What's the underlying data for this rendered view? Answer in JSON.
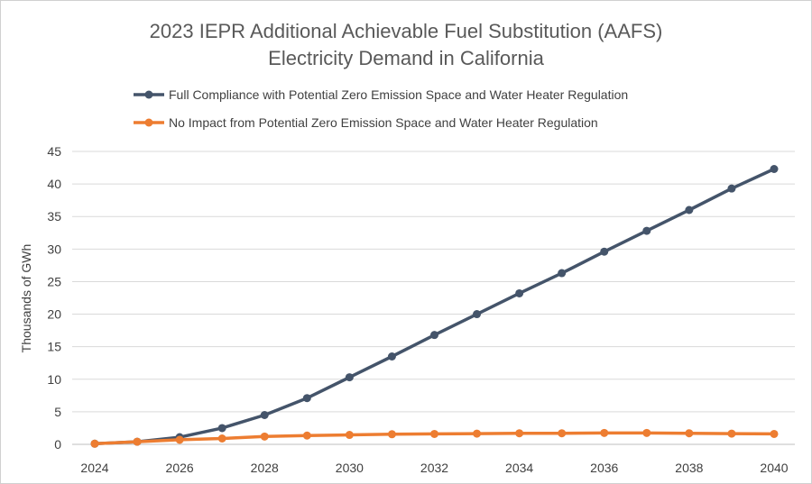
{
  "chart_data": {
    "type": "line",
    "title_lines": [
      "2023 IEPR Additional Achievable Fuel Substitution (AAFS)",
      "Electricity Demand in California"
    ],
    "xlabel": "",
    "ylabel": "Thousands of GWh",
    "ylim": [
      0,
      45
    ],
    "yticks": [
      "0",
      "5",
      "10",
      "15",
      "20",
      "25",
      "30",
      "35",
      "40",
      "45"
    ],
    "x": [
      2024,
      2025,
      2026,
      2027,
      2028,
      2029,
      2030,
      2031,
      2032,
      2033,
      2034,
      2035,
      2036,
      2037,
      2038,
      2039,
      2040
    ],
    "xticks": [
      "2024",
      "2026",
      "2028",
      "2030",
      "2032",
      "2034",
      "2036",
      "2038",
      "2040"
    ],
    "grid": "horizontal",
    "legend_position": "top",
    "series": [
      {
        "name": "Full Compliance with Potential Zero Emission Space and Water Heater Regulation",
        "color": "#44546a",
        "values": [
          0.1,
          0.4,
          1.1,
          2.5,
          4.5,
          7.1,
          10.3,
          13.5,
          16.8,
          20.0,
          23.2,
          26.3,
          29.6,
          32.8,
          36.0,
          39.3,
          42.3
        ]
      },
      {
        "name": "No Impact from Potential Zero Emission Space and Water Heater Regulation",
        "color": "#ed7d31",
        "values": [
          0.1,
          0.4,
          0.7,
          0.9,
          1.2,
          1.35,
          1.45,
          1.55,
          1.6,
          1.65,
          1.7,
          1.7,
          1.75,
          1.75,
          1.7,
          1.65,
          1.6
        ]
      }
    ]
  }
}
